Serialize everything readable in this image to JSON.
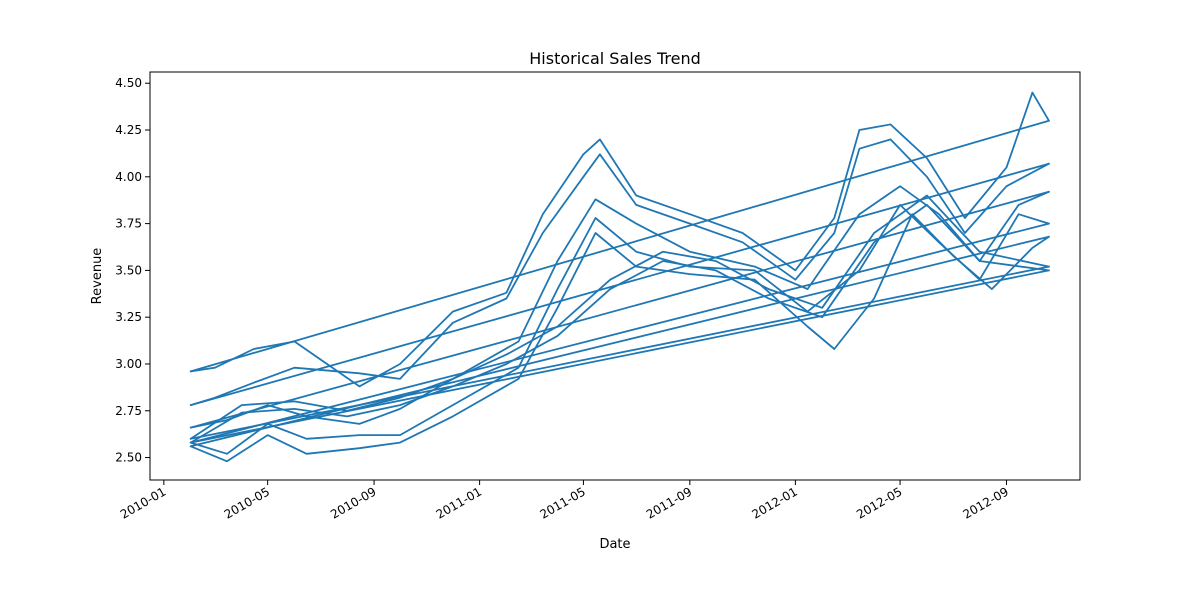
{
  "chart_data": {
    "type": "line",
    "title": "Historical Sales Trend",
    "xlabel": "Date",
    "ylabel": "Revenue",
    "x_axis": "date",
    "xlim": [
      "2009-12-16",
      "2012-11-25"
    ],
    "ylim": [
      2.38,
      4.56
    ],
    "grid": false,
    "legend": "none",
    "line_color": "#1f77b4",
    "x_ticks": [
      {
        "date": "2010-01-01",
        "label": "2010-01"
      },
      {
        "date": "2010-05-01",
        "label": "2010-05"
      },
      {
        "date": "2010-09-01",
        "label": "2010-09"
      },
      {
        "date": "2011-01-01",
        "label": "2011-01"
      },
      {
        "date": "2011-05-01",
        "label": "2011-05"
      },
      {
        "date": "2011-09-01",
        "label": "2011-09"
      },
      {
        "date": "2012-01-01",
        "label": "2012-01"
      },
      {
        "date": "2012-05-01",
        "label": "2012-05"
      },
      {
        "date": "2012-09-01",
        "label": "2012-09"
      }
    ],
    "y_ticks": [
      {
        "value": 2.5,
        "label": "2.50"
      },
      {
        "value": 2.75,
        "label": "2.75"
      },
      {
        "value": 3.0,
        "label": "3.00"
      },
      {
        "value": 3.25,
        "label": "3.25"
      },
      {
        "value": 3.5,
        "label": "3.50"
      },
      {
        "value": 3.75,
        "label": "3.75"
      },
      {
        "value": 4.0,
        "label": "4.00"
      },
      {
        "value": 4.25,
        "label": "4.25"
      },
      {
        "value": 4.5,
        "label": "4.50"
      }
    ],
    "series": [
      {
        "x": [
          "2010-02-01",
          "2010-03-01",
          "2010-04-15",
          "2010-06-01",
          "2010-08-15",
          "2010-10-01",
          "2010-12-01",
          "2011-02-01",
          "2011-03-15",
          "2011-05-01",
          "2011-05-20",
          "2011-07-01",
          "2011-09-01",
          "2011-11-01",
          "2012-01-01",
          "2012-02-15",
          "2012-03-15",
          "2012-04-20",
          "2012-06-01",
          "2012-07-15",
          "2012-09-01",
          "2012-10-01",
          "2012-10-20"
        ],
        "y": [
          2.96,
          2.98,
          3.08,
          3.12,
          2.88,
          3.0,
          3.28,
          3.38,
          3.8,
          4.12,
          4.2,
          3.9,
          3.8,
          3.7,
          3.5,
          3.78,
          4.25,
          4.28,
          4.1,
          3.78,
          4.05,
          4.45,
          4.3
        ]
      },
      {
        "x": [
          "2012-10-20",
          "2010-02-01"
        ],
        "y": [
          4.3,
          2.96
        ]
      },
      {
        "x": [
          "2010-02-01",
          "2010-03-01",
          "2010-04-15",
          "2010-06-01",
          "2010-08-15",
          "2010-10-01",
          "2010-12-01",
          "2011-02-01",
          "2011-03-15",
          "2011-05-01",
          "2011-05-20",
          "2011-07-01",
          "2011-09-01",
          "2011-11-01",
          "2012-01-01",
          "2012-02-15",
          "2012-03-15",
          "2012-04-20",
          "2012-06-01",
          "2012-07-15",
          "2012-09-01",
          "2012-10-20"
        ],
        "y": [
          2.78,
          2.82,
          2.9,
          2.98,
          2.95,
          2.92,
          3.22,
          3.35,
          3.7,
          4.0,
          4.12,
          3.85,
          3.75,
          3.65,
          3.45,
          3.7,
          4.15,
          4.2,
          4.0,
          3.7,
          3.95,
          4.07
        ]
      },
      {
        "x": [
          "2012-10-20",
          "2010-02-01"
        ],
        "y": [
          4.07,
          2.78
        ]
      },
      {
        "x": [
          "2010-02-01",
          "2010-03-15",
          "2010-05-01",
          "2010-06-15",
          "2010-08-15",
          "2010-10-01",
          "2010-12-01",
          "2011-02-15",
          "2011-04-01",
          "2011-05-15",
          "2011-07-01",
          "2011-09-01",
          "2011-11-15",
          "2012-01-15",
          "2012-03-15",
          "2012-05-01",
          "2012-06-15",
          "2012-08-01",
          "2012-09-15",
          "2012-10-20"
        ],
        "y": [
          2.66,
          2.7,
          2.78,
          2.72,
          2.68,
          2.76,
          2.92,
          3.12,
          3.55,
          3.88,
          3.75,
          3.6,
          3.52,
          3.4,
          3.8,
          3.95,
          3.8,
          3.55,
          3.85,
          3.92
        ]
      },
      {
        "x": [
          "2012-10-20",
          "2010-02-01"
        ],
        "y": [
          3.92,
          2.66
        ]
      },
      {
        "x": [
          "2010-02-01",
          "2010-03-15",
          "2010-05-01",
          "2010-06-15",
          "2010-08-15",
          "2010-10-01",
          "2010-12-01",
          "2011-02-15",
          "2011-04-01",
          "2011-05-15",
          "2011-07-01",
          "2011-09-01",
          "2011-11-15",
          "2012-01-15",
          "2012-03-15",
          "2012-05-01",
          "2012-06-15",
          "2012-08-01",
          "2012-09-15",
          "2012-10-20"
        ],
        "y": [
          2.58,
          2.52,
          2.68,
          2.6,
          2.62,
          2.62,
          2.78,
          2.98,
          3.4,
          3.78,
          3.6,
          3.52,
          3.5,
          3.28,
          3.5,
          3.85,
          3.65,
          3.45,
          3.8,
          3.75
        ]
      },
      {
        "x": [
          "2012-10-20",
          "2010-02-01"
        ],
        "y": [
          3.75,
          2.58
        ]
      },
      {
        "x": [
          "2010-02-01",
          "2010-03-15",
          "2010-05-01",
          "2010-06-15",
          "2010-08-15",
          "2010-10-01",
          "2010-12-01",
          "2011-02-15",
          "2011-04-01",
          "2011-05-15",
          "2011-07-01",
          "2011-09-01",
          "2011-11-15",
          "2012-01-15",
          "2012-02-15",
          "2012-04-01",
          "2012-05-15",
          "2012-07-01",
          "2012-08-15",
          "2012-10-01",
          "2012-10-20"
        ],
        "y": [
          2.56,
          2.48,
          2.62,
          2.52,
          2.55,
          2.58,
          2.72,
          2.92,
          3.3,
          3.7,
          3.52,
          3.48,
          3.45,
          3.2,
          3.08,
          3.35,
          3.8,
          3.58,
          3.4,
          3.62,
          3.68
        ]
      },
      {
        "x": [
          "2012-10-20",
          "2010-02-01"
        ],
        "y": [
          3.68,
          2.56
        ]
      },
      {
        "x": [
          "2010-02-01",
          "2010-04-01",
          "2010-06-01",
          "2010-08-01",
          "2010-10-01",
          "2010-12-01",
          "2011-02-01",
          "2011-04-01",
          "2011-06-01",
          "2011-08-01",
          "2011-10-01",
          "2011-12-01",
          "2012-02-01",
          "2012-04-01",
          "2012-06-01",
          "2012-08-01",
          "2012-10-20"
        ],
        "y": [
          2.6,
          2.78,
          2.8,
          2.75,
          2.82,
          2.92,
          3.05,
          3.2,
          3.45,
          3.6,
          3.55,
          3.4,
          3.3,
          3.7,
          3.9,
          3.6,
          3.52
        ]
      },
      {
        "x": [
          "2012-10-20",
          "2010-02-01"
        ],
        "y": [
          3.52,
          2.6
        ]
      },
      {
        "x": [
          "2010-02-01",
          "2010-04-01",
          "2010-06-01",
          "2010-08-01",
          "2010-10-01",
          "2010-12-01",
          "2011-02-01",
          "2011-04-01",
          "2011-06-01",
          "2011-08-01",
          "2011-10-01",
          "2011-12-01",
          "2012-02-01",
          "2012-04-01",
          "2012-06-01",
          "2012-08-01",
          "2012-10-20"
        ],
        "y": [
          2.58,
          2.74,
          2.76,
          2.72,
          2.78,
          2.88,
          3.0,
          3.15,
          3.4,
          3.55,
          3.5,
          3.35,
          3.25,
          3.65,
          3.85,
          3.55,
          3.5
        ]
      },
      {
        "x": [
          "2012-10-20",
          "2010-02-01"
        ],
        "y": [
          3.5,
          2.58
        ]
      }
    ]
  }
}
